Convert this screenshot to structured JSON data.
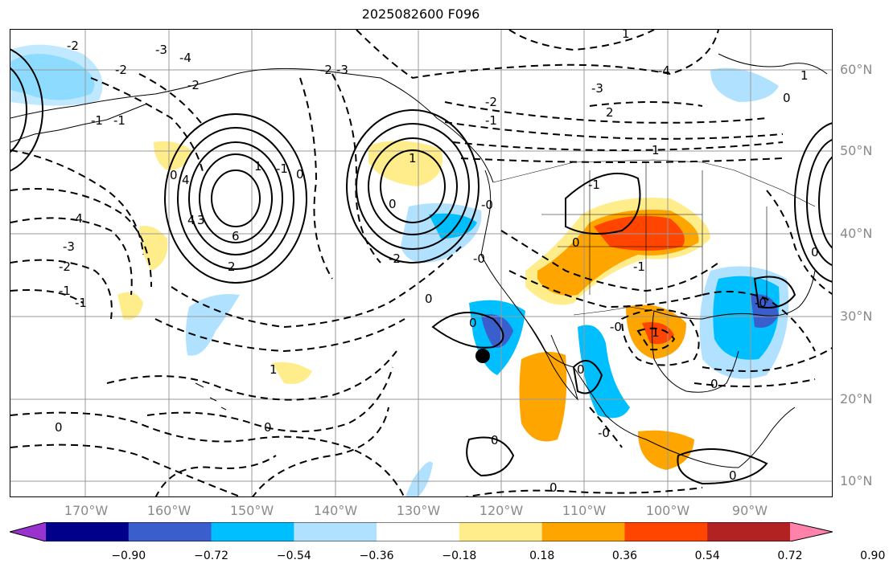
{
  "title": "2025082600 F096",
  "lat_labels": [
    "60°N",
    "50°N",
    "40°N",
    "30°N",
    "20°N",
    "10°N"
  ],
  "lon_labels": [
    "170°W",
    "160°W",
    "150°W",
    "140°W",
    "130°W",
    "120°W",
    "110°W",
    "100°W",
    "90°W"
  ],
  "colorbar": {
    "tick_labels": [
      "−0.90",
      "−0.72",
      "−0.54",
      "−0.36",
      "−0.18",
      "0.18",
      "0.36",
      "0.54",
      "0.72",
      "0.90"
    ],
    "colors": [
      "#9a32cd",
      "#00008b",
      "#3a5fcd",
      "#00bfff",
      "#b0e2ff",
      "#ffffff",
      "#ffec8b",
      "#ffa500",
      "#ff4500",
      "#b22222",
      "#ff82ab"
    ]
  },
  "contour_labels": [
    "-2",
    "-3",
    "-4",
    "-2",
    "-1",
    "-2",
    "-3",
    "-4",
    "-3",
    "-2",
    "-1",
    "6",
    "1",
    "2",
    "3",
    "4",
    "-2",
    "0",
    "-1",
    "-2",
    "-1",
    "-3",
    "-4",
    "2",
    "1",
    "0",
    "1",
    "-1",
    "0",
    "-1",
    "1",
    "0",
    "0",
    "0",
    "-0",
    "-0",
    "0",
    "-1",
    "0",
    "-1",
    "-2",
    "0",
    "0",
    "-0",
    "1",
    "0",
    "1",
    "0",
    "0",
    "1",
    "0",
    "4",
    "-0",
    "0",
    "-0"
  ],
  "marker": "station-marker"
}
